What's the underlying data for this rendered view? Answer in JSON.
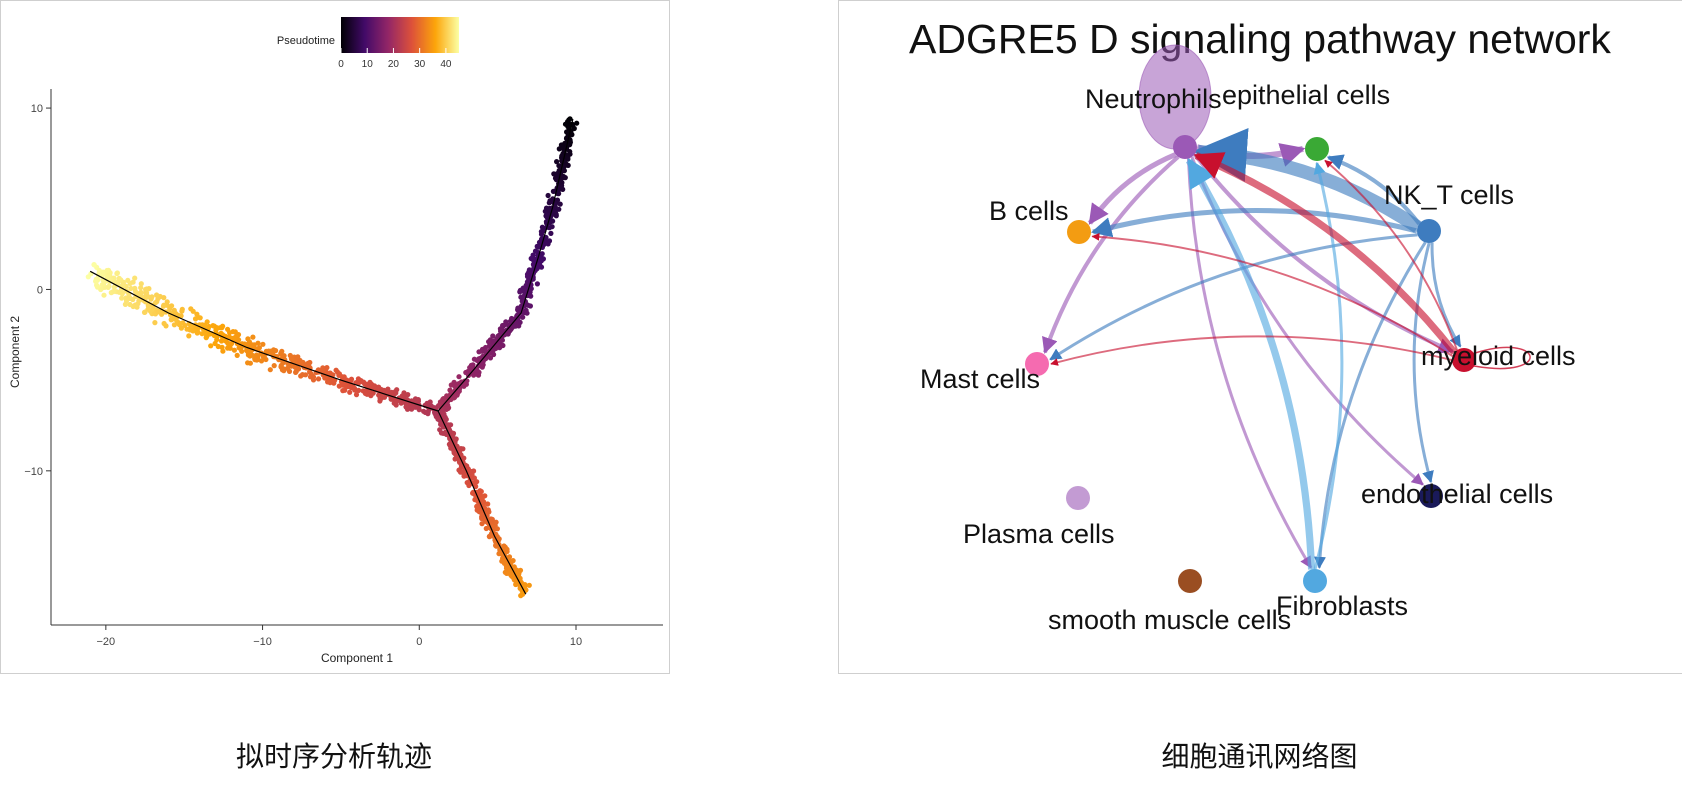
{
  "captions": {
    "left": "拟时序分析轨迹",
    "right": "细胞通讯网络图"
  },
  "colors": {
    "bg": "#ffffff",
    "axis": "#333333",
    "trajectory": "#000000"
  },
  "chart_data": [
    {
      "type": "scatter",
      "title": "",
      "xlabel": "Component 1",
      "ylabel": "Component 2",
      "xlim": [
        -23.5,
        13
      ],
      "ylim": [
        -18.5,
        10.5
      ],
      "xticks": [
        -20,
        -10,
        0,
        10
      ],
      "yticks": [
        -10,
        0,
        10
      ],
      "xtick_labels": [
        "−20",
        "−10",
        "0",
        "10"
      ],
      "ytick_labels": [
        "−10",
        "0",
        "10"
      ],
      "grid": false,
      "legend": {
        "title": "Pseudotime",
        "placement": "top-center",
        "ticks": [
          0,
          10,
          20,
          30,
          40
        ],
        "tick_labels": [
          "0",
          "10",
          "20",
          "30",
          "40"
        ],
        "range": [
          0,
          45
        ],
        "colors": [
          "#000004",
          "#420a68",
          "#932667",
          "#dd513a",
          "#fca50a",
          "#fcffa4"
        ]
      },
      "branches": [
        {
          "name": "",
          "pseudotime": [
            0,
            21
          ],
          "points": [
            [
              9.8,
              9.4
            ],
            [
              8.5,
              4.5
            ],
            [
              7.6,
              1.8
            ],
            [
              6.5,
              -1.3
            ],
            [
              3.5,
              -4.4
            ],
            [
              1.2,
              -6.7
            ]
          ]
        },
        {
          "name": "",
          "pseudotime": [
            21,
            45
          ],
          "points": [
            [
              1.2,
              -6.7
            ],
            [
              -5,
              -5.0
            ],
            [
              -11,
              -3.2
            ],
            [
              -16,
              -1.3
            ],
            [
              -21,
              1.0
            ]
          ]
        },
        {
          "name": "",
          "pseudotime": [
            21,
            35
          ],
          "points": [
            [
              1.2,
              -6.7
            ],
            [
              3,
              -10.0
            ],
            [
              4.8,
              -13.6
            ],
            [
              6.8,
              -16.8
            ]
          ]
        }
      ]
    },
    {
      "type": "network",
      "title": "ADGRE5 D signaling pathway network",
      "nodes": [
        {
          "id": "neutrophils",
          "label": "Neutrophils",
          "color": "#9b59b6"
        },
        {
          "id": "epithelial",
          "label": "epithelial cells",
          "color": "#3aa935"
        },
        {
          "id": "nkt",
          "label": "NK_T cells",
          "color": "#3e7cbf"
        },
        {
          "id": "bcells",
          "label": "B cells",
          "color": "#f39c12"
        },
        {
          "id": "mast",
          "label": "Mast cells",
          "color": "#f56bb0"
        },
        {
          "id": "myeloid",
          "label": "myeloid cells",
          "color": "#c8102e"
        },
        {
          "id": "endothelial",
          "label": "endothelial cells",
          "color": "#1a1a5a"
        },
        {
          "id": "plasma",
          "label": "Plasma cells",
          "color": "#c39bd3"
        },
        {
          "id": "fibroblasts",
          "label": "Fibroblasts",
          "color": "#52a8e0"
        },
        {
          "id": "smooth",
          "label": "smooth muscle cells",
          "color": "#9a4e22"
        }
      ],
      "edges": [
        {
          "from": "neutrophils",
          "to": "neutrophils",
          "weight": 10
        },
        {
          "from": "neutrophils",
          "to": "epithelial",
          "weight": 5
        },
        {
          "from": "neutrophils",
          "to": "bcells",
          "weight": 4
        },
        {
          "from": "neutrophils",
          "to": "mast",
          "weight": 3
        },
        {
          "from": "neutrophils",
          "to": "myeloid",
          "weight": 3
        },
        {
          "from": "neutrophils",
          "to": "endothelial",
          "weight": 2
        },
        {
          "from": "neutrophils",
          "to": "fibroblasts",
          "weight": 2
        },
        {
          "from": "nkt",
          "to": "neutrophils",
          "weight": 12
        },
        {
          "from": "nkt",
          "to": "epithelial",
          "weight": 3
        },
        {
          "from": "nkt",
          "to": "bcells",
          "weight": 4
        },
        {
          "from": "nkt",
          "to": "mast",
          "weight": 2
        },
        {
          "from": "nkt",
          "to": "myeloid",
          "weight": 2
        },
        {
          "from": "nkt",
          "to": "endothelial",
          "weight": 2
        },
        {
          "from": "nkt",
          "to": "fibroblasts",
          "weight": 2
        },
        {
          "from": "fibroblasts",
          "to": "neutrophils",
          "weight": 6
        },
        {
          "from": "fibroblasts",
          "to": "epithelial",
          "weight": 2
        },
        {
          "from": "myeloid",
          "to": "neutrophils",
          "weight": 6
        },
        {
          "from": "myeloid",
          "to": "epithelial",
          "weight": 1
        },
        {
          "from": "myeloid",
          "to": "bcells",
          "weight": 1
        },
        {
          "from": "myeloid",
          "to": "mast",
          "weight": 1
        },
        {
          "from": "myeloid",
          "to": "myeloid",
          "weight": 1
        }
      ]
    }
  ]
}
